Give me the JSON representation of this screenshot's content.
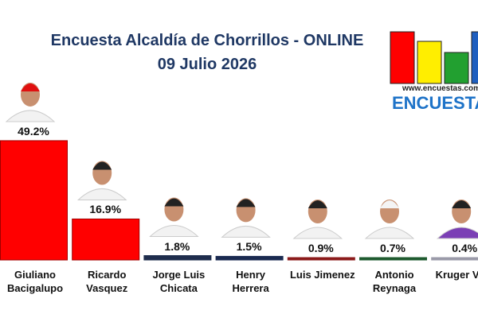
{
  "chart_data": {
    "type": "bar",
    "title": "Encuesta Alcaldía de Chorrillos - ONLINE",
    "subtitle": "09 Julio 2026",
    "categories": [
      "Giuliano Bacigalupo",
      "Ricardo Vasquez",
      "Jorge Luis Chicata",
      "Henry Herrera",
      "Luis Jimenez",
      "Antonio Reynaga",
      "Kruger Vidal"
    ],
    "values": [
      49.2,
      16.9,
      1.8,
      1.5,
      0.9,
      0.7,
      0.4
    ],
    "value_labels": [
      "49.2%",
      "16.9%",
      "1.8%",
      "1.5%",
      "0.9%",
      "0.7%",
      "0.4%"
    ],
    "colors": [
      "#ff0000",
      "#ff0000",
      "#1f2d4d",
      "#1a2a50",
      "#8b1a1a",
      "#1e5a2e",
      "#9a9aa8"
    ],
    "logo": {
      "url": "www.encuestas.com.pe",
      "name": "ENCUESTAS"
    }
  }
}
